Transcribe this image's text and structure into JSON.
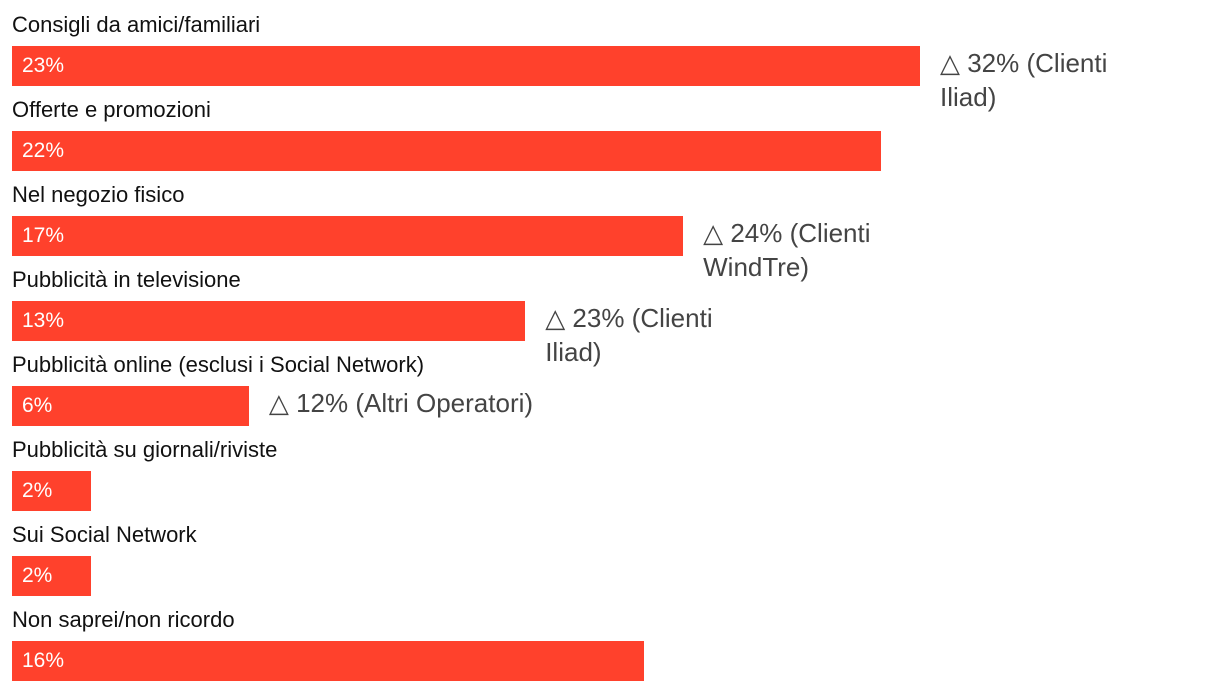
{
  "chart_data": {
    "type": "bar",
    "orientation": "horizontal",
    "bar_color": "#ff412c",
    "annotation_color": "#444444",
    "categories": [
      "Consigli da amici/familiari",
      "Offerte e promozioni",
      "Nel negozio fisico",
      "Pubblicità in televisione",
      "Pubblicità online (esclusi i Social Network)",
      "Pubblicità su giornali/riviste",
      "Sui Social Network",
      "Non saprei/non ricordo"
    ],
    "values": [
      23,
      22,
      17,
      13,
      6,
      2,
      2,
      16
    ],
    "value_labels": [
      "23%",
      "22%",
      "17%",
      "13%",
      "6%",
      "2%",
      "2%",
      "16%"
    ],
    "annotations": [
      "△ 32% (Clienti Iliad)",
      "",
      "△ 24% (Clienti WindTre)",
      "△ 23% (Clienti Iliad)",
      "△ 12% (Altri Operatori)",
      "",
      "",
      ""
    ],
    "xlim": [
      0,
      23
    ]
  }
}
